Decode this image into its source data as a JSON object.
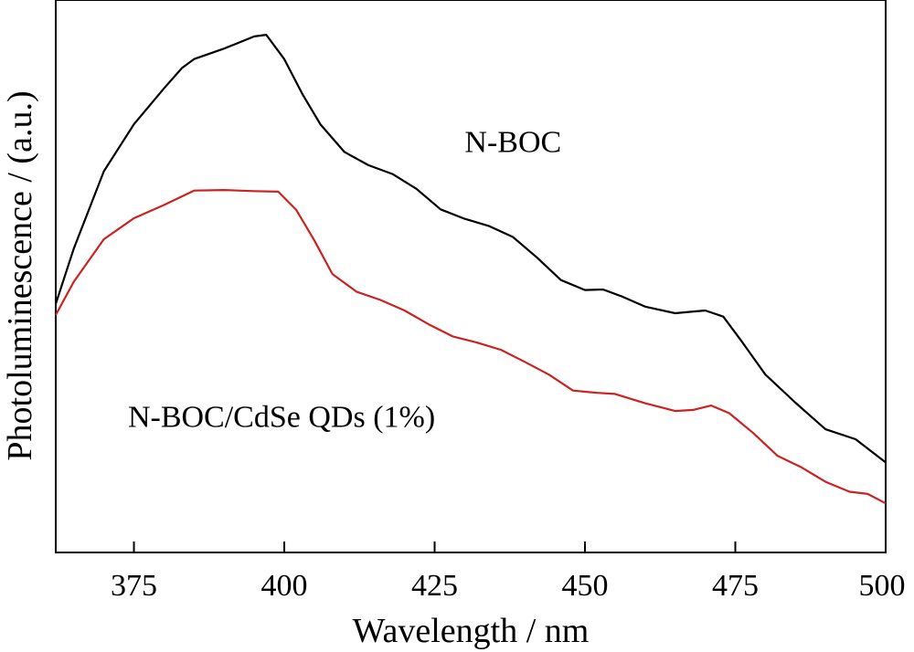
{
  "chart_data": {
    "type": "line",
    "title": "",
    "xlabel": "Wavelength / nm",
    "ylabel": "Photoluminescence / (a.u.)",
    "xlim": [
      362,
      500
    ],
    "ylim": [
      0,
      100
    ],
    "x_ticks": [
      375,
      400,
      425,
      450,
      475,
      500
    ],
    "grid": false,
    "legend": "inline labels",
    "series": [
      {
        "name": "N-BOC",
        "color": "#000000",
        "label_position": [
          430,
          72.5
        ],
        "points": [
          [
            362,
            45
          ],
          [
            365,
            55
          ],
          [
            370,
            69
          ],
          [
            375,
            77.5
          ],
          [
            380,
            84
          ],
          [
            383,
            87.7
          ],
          [
            385,
            89.3
          ],
          [
            390,
            91.2
          ],
          [
            395,
            93.4
          ],
          [
            397,
            93.7
          ],
          [
            400,
            89.3
          ],
          [
            403,
            83
          ],
          [
            406,
            77.5
          ],
          [
            410,
            72.5
          ],
          [
            414,
            70.1
          ],
          [
            418,
            68.5
          ],
          [
            422,
            65.8
          ],
          [
            426,
            62.1
          ],
          [
            430,
            60.4
          ],
          [
            434,
            59.1
          ],
          [
            438,
            57.1
          ],
          [
            442,
            53.4
          ],
          [
            446,
            49.3
          ],
          [
            450,
            47.5
          ],
          [
            453,
            47.6
          ],
          [
            456,
            46.4
          ],
          [
            460,
            44.5
          ],
          [
            465,
            43.3
          ],
          [
            470,
            43.8
          ],
          [
            473,
            42.7
          ],
          [
            476,
            38.3
          ],
          [
            480,
            32.2
          ],
          [
            485,
            27.1
          ],
          [
            490,
            22.3
          ],
          [
            495,
            20.5
          ],
          [
            500,
            16.3
          ]
        ]
      },
      {
        "name": "N-BOC/CdSe QDs (1%)",
        "color": "#cc2222",
        "label_position": [
          374,
          22.7
        ],
        "points": [
          [
            362,
            43
          ],
          [
            365,
            49
          ],
          [
            370,
            56.7
          ],
          [
            375,
            60.5
          ],
          [
            380,
            62.9
          ],
          [
            385,
            65.5
          ],
          [
            390,
            65.6
          ],
          [
            395,
            65.4
          ],
          [
            399,
            65.3
          ],
          [
            402,
            62
          ],
          [
            405,
            56.5
          ],
          [
            408,
            50.4
          ],
          [
            412,
            47.2
          ],
          [
            416,
            45.7
          ],
          [
            420,
            43.8
          ],
          [
            424,
            41.3
          ],
          [
            428,
            39.1
          ],
          [
            432,
            38
          ],
          [
            436,
            36.7
          ],
          [
            440,
            34.5
          ],
          [
            444,
            32.2
          ],
          [
            448,
            29.3
          ],
          [
            452,
            28.9
          ],
          [
            455,
            28.7
          ],
          [
            460,
            27
          ],
          [
            465,
            25.6
          ],
          [
            468,
            25.8
          ],
          [
            471,
            26.6
          ],
          [
            474,
            25.2
          ],
          [
            478,
            21.6
          ],
          [
            482,
            17.5
          ],
          [
            486,
            15.4
          ],
          [
            490,
            12.8
          ],
          [
            494,
            11
          ],
          [
            497,
            10.6
          ],
          [
            500,
            8.9
          ]
        ]
      }
    ]
  }
}
